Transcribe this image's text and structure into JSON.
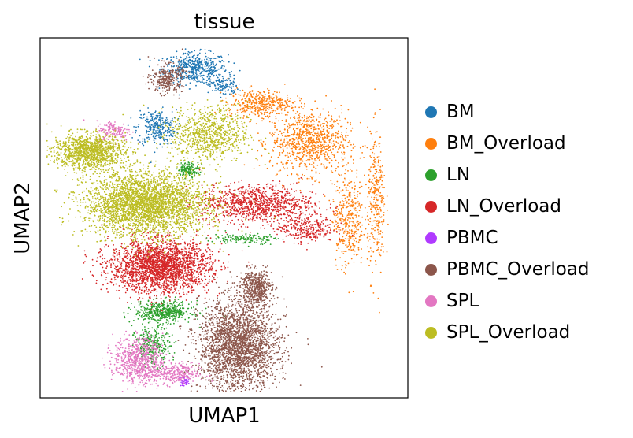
{
  "chart_data": {
    "type": "scatter",
    "title": "tissue",
    "xlabel": "UMAP1",
    "ylabel": "UMAP2",
    "xticks": [],
    "yticks": [],
    "grid": false,
    "legend_position": "right",
    "series": [
      {
        "name": "BM",
        "color": "#1f77b4",
        "clusters": [
          {
            "cx": 4.2,
            "cy": 9.3,
            "rx": 0.9,
            "ry": 0.45,
            "n": 500
          },
          {
            "cx": 3.1,
            "cy": 7.6,
            "rx": 0.55,
            "ry": 0.5,
            "n": 300
          },
          {
            "cx": 5.0,
            "cy": 8.8,
            "rx": 0.4,
            "ry": 0.3,
            "n": 120
          }
        ]
      },
      {
        "name": "BM_Overload",
        "color": "#ff7f0e",
        "clusters": [
          {
            "cx": 7.4,
            "cy": 7.2,
            "rx": 1.1,
            "ry": 0.9,
            "n": 900
          },
          {
            "cx": 6.0,
            "cy": 8.3,
            "rx": 0.9,
            "ry": 0.4,
            "n": 400
          },
          {
            "cx": 8.5,
            "cy": 5.0,
            "rx": 0.45,
            "ry": 1.4,
            "n": 400
          },
          {
            "cx": 9.3,
            "cy": 5.4,
            "rx": 0.25,
            "ry": 2.0,
            "n": 300
          }
        ]
      },
      {
        "name": "LN",
        "color": "#2ca02c",
        "clusters": [
          {
            "cx": 3.3,
            "cy": 2.3,
            "rx": 0.8,
            "ry": 0.3,
            "n": 500
          },
          {
            "cx": 3.0,
            "cy": 1.3,
            "rx": 0.5,
            "ry": 0.55,
            "n": 300
          },
          {
            "cx": 4.0,
            "cy": 6.4,
            "rx": 0.3,
            "ry": 0.2,
            "n": 150
          },
          {
            "cx": 5.6,
            "cy": 4.4,
            "rx": 0.9,
            "ry": 0.15,
            "n": 150
          }
        ]
      },
      {
        "name": "LN_Overload",
        "color": "#d62728",
        "clusters": [
          {
            "cx": 3.2,
            "cy": 3.6,
            "rx": 1.4,
            "ry": 0.75,
            "n": 2400
          },
          {
            "cx": 5.9,
            "cy": 5.4,
            "rx": 1.6,
            "ry": 0.55,
            "n": 1000
          },
          {
            "cx": 7.3,
            "cy": 4.7,
            "rx": 0.8,
            "ry": 0.4,
            "n": 300
          }
        ]
      },
      {
        "name": "PBMC",
        "color": "#b03aff",
        "clusters": [
          {
            "cx": 3.9,
            "cy": 0.3,
            "rx": 0.15,
            "ry": 0.15,
            "n": 40
          }
        ]
      },
      {
        "name": "PBMC_Overload",
        "color": "#8c564b",
        "clusters": [
          {
            "cx": 5.4,
            "cy": 1.3,
            "rx": 1.1,
            "ry": 1.3,
            "n": 2600
          },
          {
            "cx": 5.9,
            "cy": 3.0,
            "rx": 0.45,
            "ry": 0.5,
            "n": 500
          },
          {
            "cx": 3.4,
            "cy": 9.0,
            "rx": 0.45,
            "ry": 0.4,
            "n": 300
          }
        ]
      },
      {
        "name": "SPL",
        "color": "#e377c2",
        "clusters": [
          {
            "cx": 2.6,
            "cy": 0.9,
            "rx": 0.7,
            "ry": 0.65,
            "n": 700
          },
          {
            "cx": 3.6,
            "cy": 0.5,
            "rx": 0.7,
            "ry": 0.3,
            "n": 300
          },
          {
            "cx": 1.9,
            "cy": 7.5,
            "rx": 0.5,
            "ry": 0.3,
            "n": 150
          }
        ]
      },
      {
        "name": "SPL_Overload",
        "color": "#bcbd22",
        "clusters": [
          {
            "cx": 2.8,
            "cy": 5.4,
            "rx": 1.7,
            "ry": 0.9,
            "n": 3200
          },
          {
            "cx": 1.2,
            "cy": 6.9,
            "rx": 1.0,
            "ry": 0.5,
            "n": 1200
          },
          {
            "cx": 4.6,
            "cy": 7.4,
            "rx": 1.1,
            "ry": 0.8,
            "n": 800
          }
        ]
      }
    ],
    "xlim": [
      0,
      10
    ],
    "ylim": [
      0,
      10
    ]
  }
}
